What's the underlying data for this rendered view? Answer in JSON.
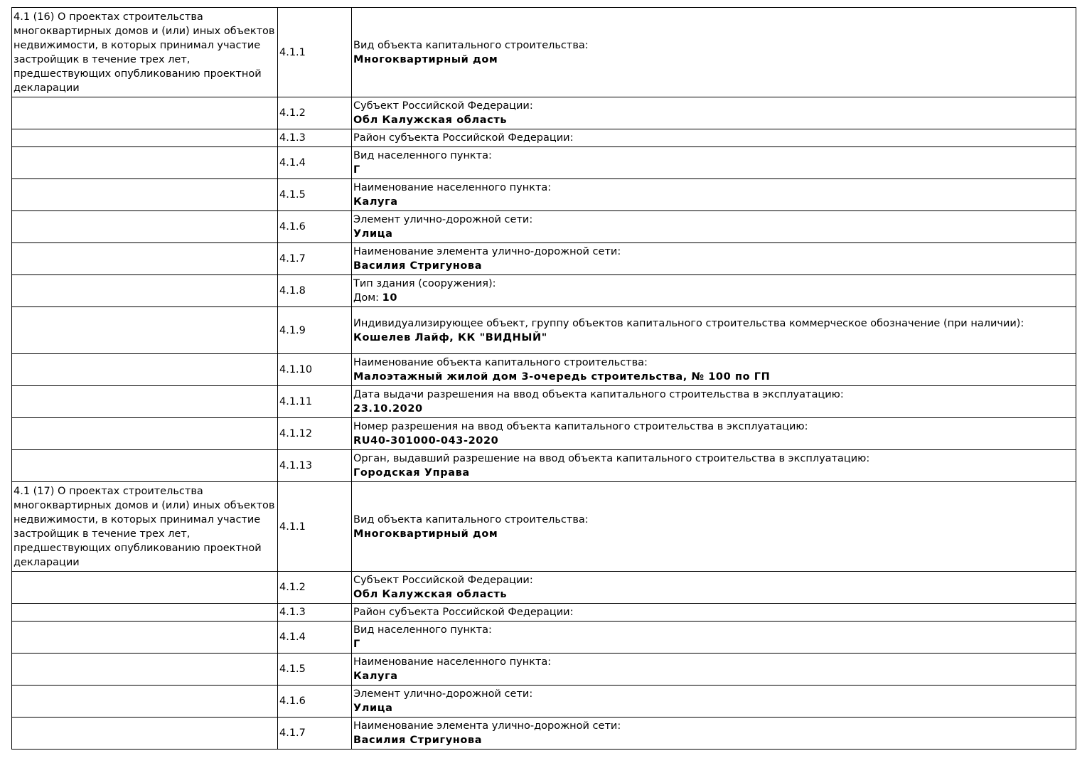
{
  "sections": [
    {
      "title": "4.1 (16) О проектах строительства многоквартирных домов и (или) иных объектов недвижимости, в которых принимал участие застройщик в течение трех лет, предшествующих опубликованию проектной декларации",
      "rows": [
        {
          "num": "4.1.1",
          "label": "Вид объекта капитального строительства:",
          "value": "Многоквартирный дом"
        },
        {
          "num": "4.1.2",
          "label": "Субъект Российской Федерации:",
          "value": "Обл Калужская область"
        },
        {
          "num": "4.1.3",
          "label": "Район субъекта Российской Федерации:"
        },
        {
          "num": "4.1.4",
          "label": "Вид населенного пункта:",
          "value": "Г"
        },
        {
          "num": "4.1.5",
          "label": "Наименование населенного пункта:",
          "value": "Калуга"
        },
        {
          "num": "4.1.6",
          "label": "Элемент улично-дорожной сети:",
          "value": "Улица"
        },
        {
          "num": "4.1.7",
          "label": "Наименование элемента улично-дорожной сети:",
          "value": "Василия Стригунова"
        },
        {
          "num": "4.1.8",
          "label": "Тип здания (сооружения):",
          "value_prefix": "Дом: ",
          "value": "10"
        },
        {
          "num": "4.1.9",
          "label": "Индивидуализирующее объект, группу объектов капитального строительства коммерческое обозначение (при наличии):",
          "value": "Кошелев Лайф, КК \"ВИДНЫЙ\""
        },
        {
          "num": "4.1.10",
          "label": "Наименование объекта капитального строительства:",
          "value": "Малоэтажный жилой дом 3-очередь строительства, № 100 по ГП"
        },
        {
          "num": "4.1.11",
          "label": "Дата выдачи разрешения на ввод объекта капитального строительства в эксплуатацию:",
          "value": "23.10.2020"
        },
        {
          "num": "4.1.12",
          "label": "Номер разрешения на ввод объекта капитального строительства в эксплуатацию:",
          "value": "RU40-301000-043-2020"
        },
        {
          "num": "4.1.13",
          "label": "Орган, выдавший разрешение на ввод объекта капитального строительства в эксплуатацию:",
          "value": "Городская Управа"
        }
      ]
    },
    {
      "title": "4.1 (17) О проектах строительства многоквартирных домов и (или) иных объектов недвижимости, в которых принимал участие застройщик в течение трех лет, предшествующих опубликованию проектной декларации",
      "rows": [
        {
          "num": "4.1.1",
          "label": "Вид объекта капитального строительства:",
          "value": "Многоквартирный дом"
        },
        {
          "num": "4.1.2",
          "label": "Субъект Российской Федерации:",
          "value": "Обл Калужская область"
        },
        {
          "num": "4.1.3",
          "label": "Район субъекта Российской Федерации:"
        },
        {
          "num": "4.1.4",
          "label": "Вид населенного пункта:",
          "value": "Г"
        },
        {
          "num": "4.1.5",
          "label": "Наименование населенного пункта:",
          "value": "Калуга"
        },
        {
          "num": "4.1.6",
          "label": "Элемент улично-дорожной сети:",
          "value": "Улица"
        },
        {
          "num": "4.1.7",
          "label": "Наименование элемента улично-дорожной сети:",
          "value": "Василия Стригунова"
        }
      ]
    }
  ]
}
